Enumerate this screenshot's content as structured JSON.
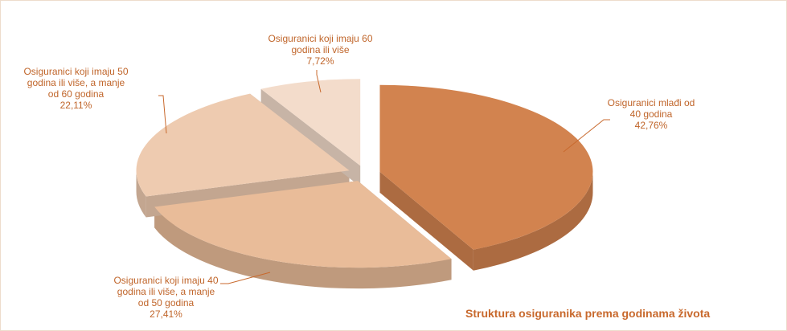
{
  "chart_data": {
    "type": "pie",
    "title": "Struktura osiguranika prema godinama života",
    "categories": [
      "Osiguranici mlađi od 40 godina",
      "Osiguranici koji imaju 40 godina ili više, a manje od 50 godina",
      "Osiguranici koji imaju 50 godina ili više, a manje od 60 godina",
      "Osiguranici koji imaju 60 godina ili više"
    ],
    "values": [
      42.76,
      27.41,
      22.11,
      7.72
    ],
    "value_labels": [
      "42,76%",
      "27,41%",
      "22,11%",
      "7,72%"
    ],
    "colors": [
      "#d2834f",
      "#e9bc99",
      "#eecbb0",
      "#f3dccb"
    ]
  }
}
